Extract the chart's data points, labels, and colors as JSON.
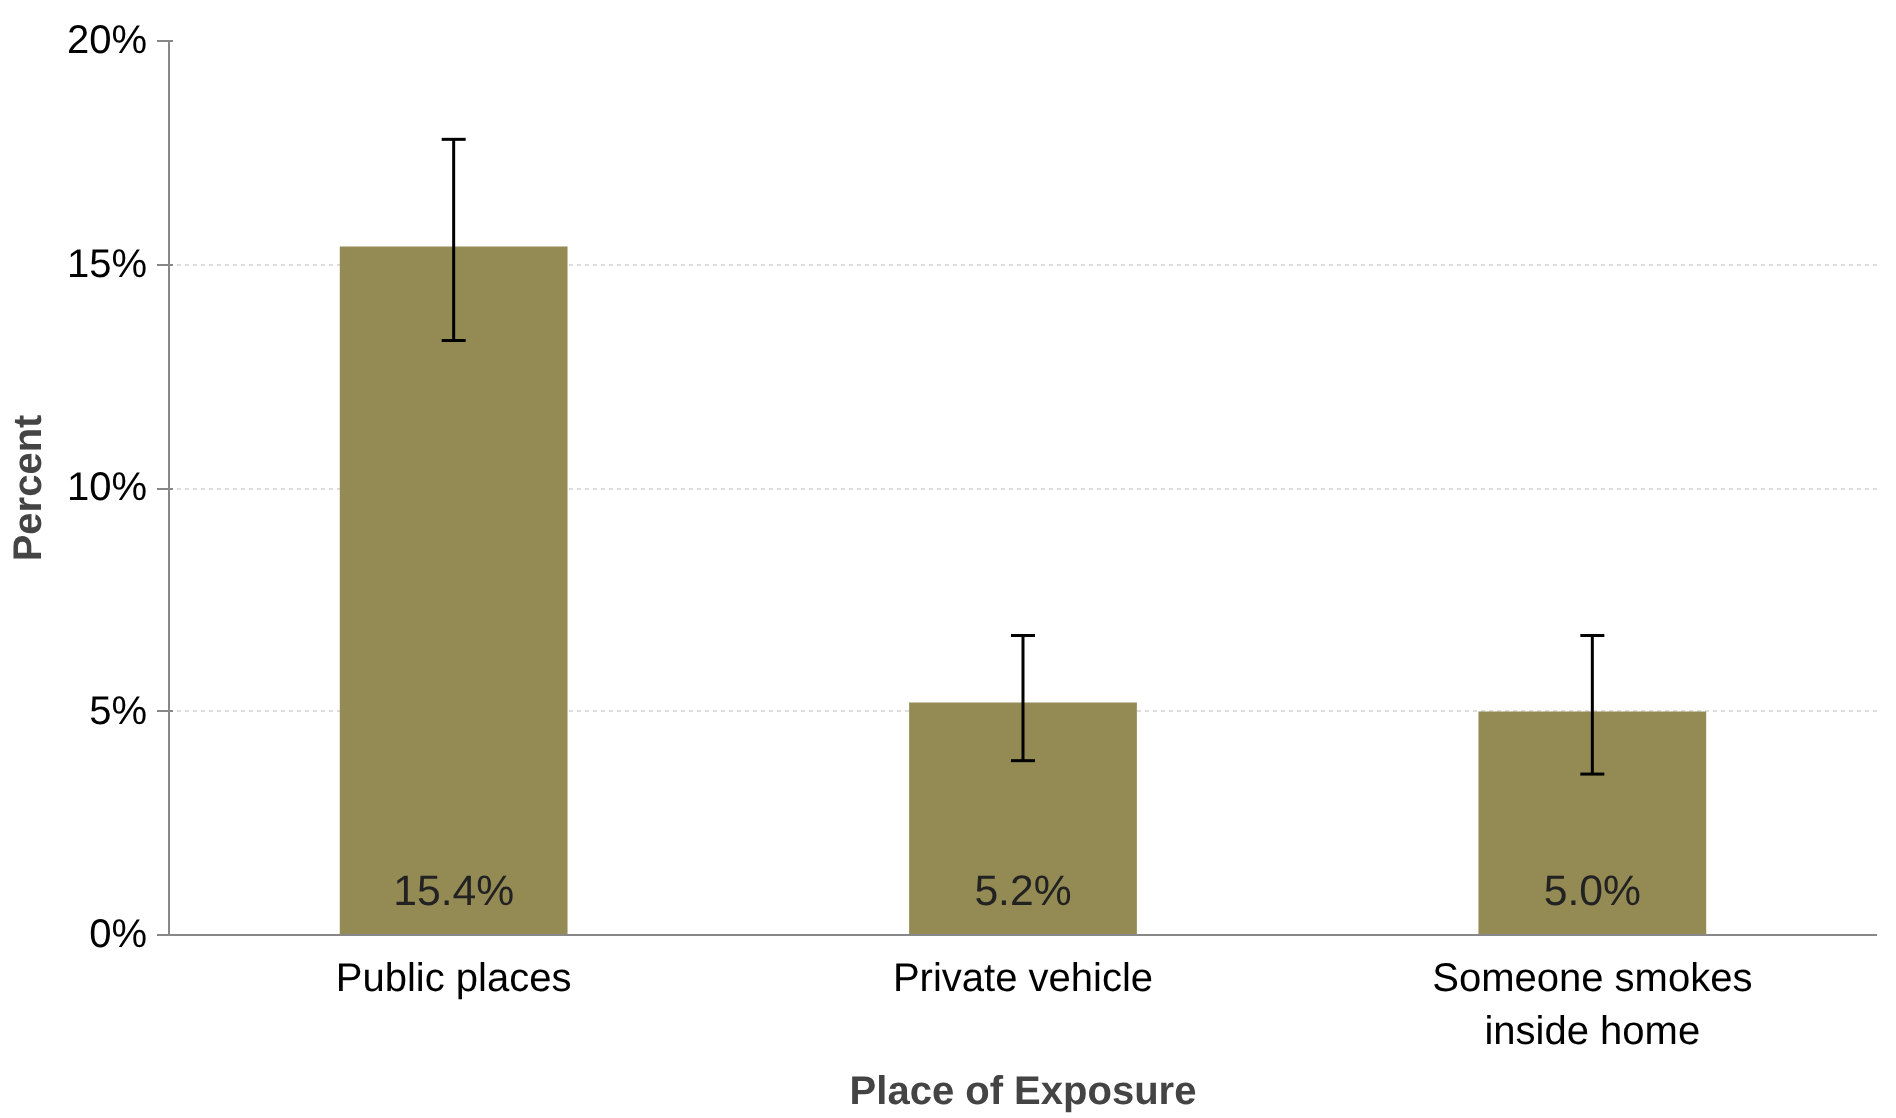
{
  "chart_data": {
    "type": "bar",
    "xlabel": "Place of Exposure",
    "ylabel": "Percent",
    "categories": [
      "Public places",
      "Private vehicle",
      "Someone smokes\ninside home"
    ],
    "values": [
      15.4,
      5.2,
      5.0
    ],
    "errors": [
      [
        13.3,
        17.8
      ],
      [
        3.9,
        6.7
      ],
      [
        3.6,
        6.7
      ]
    ],
    "value_labels": [
      "15.4%",
      "5.2%",
      "5.0%"
    ],
    "color": "#948a54",
    "ylim": [
      0,
      20
    ],
    "yticks": [
      {
        "value": 0,
        "label": "0%"
      },
      {
        "value": 5,
        "label": "5%"
      },
      {
        "value": 10,
        "label": "10%"
      },
      {
        "value": 15,
        "label": "15%"
      },
      {
        "value": 20,
        "label": "20%"
      }
    ],
    "grid": "y"
  }
}
